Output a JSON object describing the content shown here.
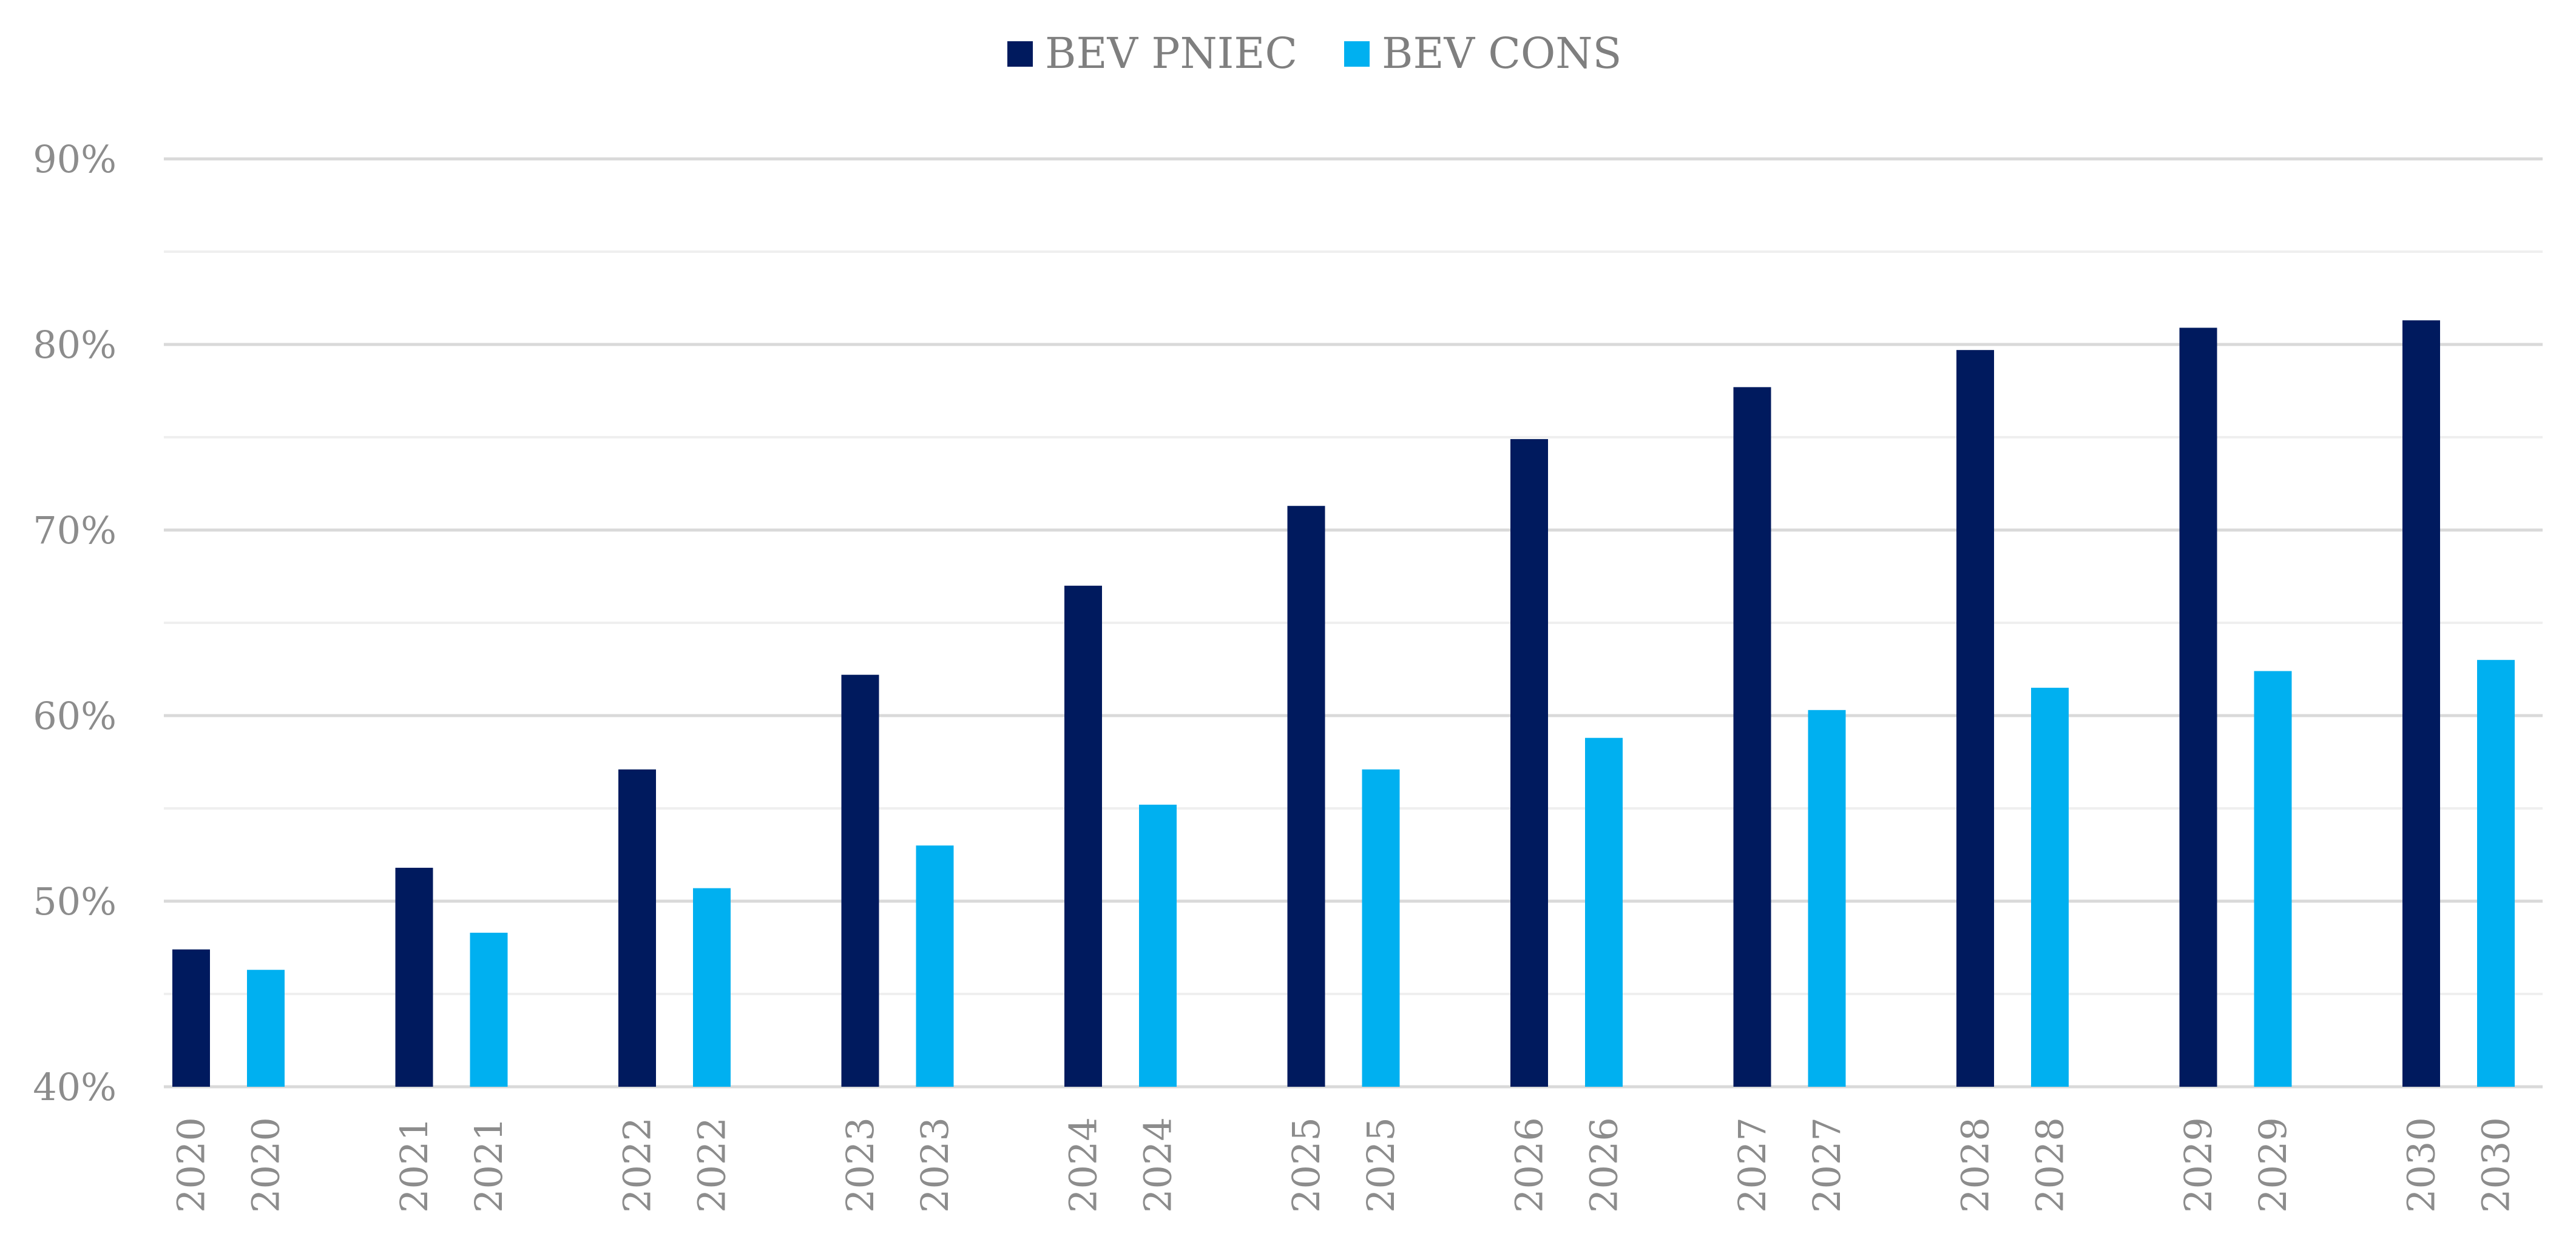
{
  "chart_data": {
    "type": "bar",
    "title": "",
    "xlabel": "",
    "ylabel": "",
    "ylim": [
      40,
      90
    ],
    "y_tick_step": 10,
    "y_tick_format": "percent",
    "y_ticks": [
      "40%",
      "50%",
      "60%",
      "70%",
      "80%",
      "90%"
    ],
    "grid": true,
    "legend_position": "top-center",
    "categories": [
      "2020",
      "2021",
      "2022",
      "2023",
      "2024",
      "2025",
      "2026",
      "2027",
      "2028",
      "2029",
      "2030"
    ],
    "series": [
      {
        "name": "BEV PNIEC",
        "color": "#001a5e",
        "values": [
          47.4,
          51.8,
          57.1,
          62.2,
          67.0,
          71.3,
          74.9,
          77.7,
          79.7,
          80.9,
          81.3
        ]
      },
      {
        "name": "BEV CONS",
        "color": "#00b0f0",
        "values": [
          46.3,
          48.3,
          50.7,
          53.0,
          55.2,
          57.1,
          58.8,
          60.3,
          61.5,
          62.4,
          63.0
        ]
      }
    ],
    "tick_labels_per_bar": true,
    "tick_label_rotation": "vertical"
  }
}
